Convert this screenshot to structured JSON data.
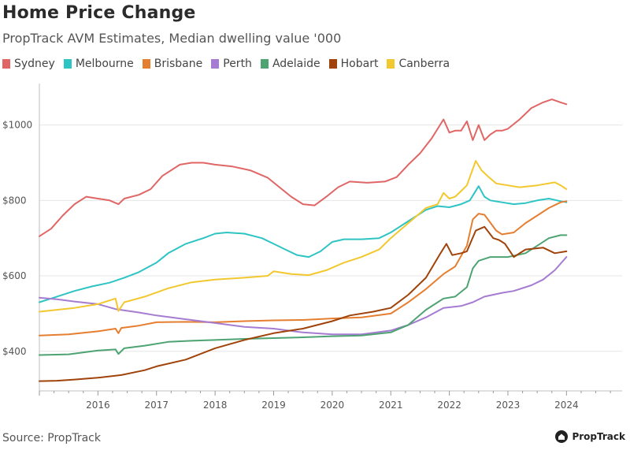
{
  "header": {
    "title": "Home Price Change",
    "subtitle": "PropTrack AVM Estimates, Median dwelling value '000"
  },
  "footer": {
    "source": "Source: PropTrack",
    "brand": "PropTrack"
  },
  "chart_data": {
    "type": "line",
    "title": "Home Price Change",
    "subtitle": "PropTrack AVM Estimates, Median dwelling value '000",
    "xlabel": "",
    "ylabel": "",
    "xlim": [
      2015.0,
      2024.95
    ],
    "ylim": [
      295,
      1110
    ],
    "x_ticks": [
      "2016",
      "2017",
      "2018",
      "2019",
      "2020",
      "2021",
      "2022",
      "2023",
      "2024"
    ],
    "y_ticks": [
      400,
      600,
      800,
      1000
    ],
    "y_tick_labels": [
      "$400",
      "$600",
      "$800",
      "$1000"
    ],
    "grid": "horizontal",
    "legend_position": "top-left",
    "series": [
      {
        "name": "Sydney",
        "color": "#e06666",
        "x": [
          2015.0,
          2015.2,
          2015.4,
          2015.6,
          2015.8,
          2016.0,
          2016.2,
          2016.35,
          2016.45,
          2016.7,
          2016.9,
          2017.1,
          2017.4,
          2017.6,
          2017.8,
          2018.0,
          2018.3,
          2018.6,
          2018.9,
          2019.1,
          2019.3,
          2019.5,
          2019.7,
          2019.9,
          2020.1,
          2020.3,
          2020.6,
          2020.9,
          2021.1,
          2021.3,
          2021.5,
          2021.7,
          2021.9,
          2022.0,
          2022.1,
          2022.2,
          2022.3,
          2022.4,
          2022.5,
          2022.6,
          2022.7,
          2022.8,
          2022.9,
          2023.0,
          2023.2,
          2023.4,
          2023.6,
          2023.75,
          2023.9,
          2024.0
        ],
        "y": [
          705,
          725,
          760,
          790,
          810,
          805,
          800,
          790,
          805,
          815,
          830,
          865,
          895,
          900,
          900,
          895,
          890,
          880,
          860,
          835,
          810,
          790,
          787,
          810,
          835,
          850,
          847,
          850,
          862,
          895,
          925,
          965,
          1015,
          980,
          985,
          985,
          1010,
          960,
          1000,
          960,
          975,
          985,
          985,
          990,
          1015,
          1045,
          1060,
          1068,
          1060,
          1055
        ]
      },
      {
        "name": "Melbourne",
        "color": "#2ec4c4",
        "x": [
          2015.0,
          2015.3,
          2015.6,
          2015.9,
          2016.2,
          2016.45,
          2016.7,
          2017.0,
          2017.2,
          2017.5,
          2017.8,
          2018.0,
          2018.2,
          2018.5,
          2018.8,
          2019.0,
          2019.2,
          2019.4,
          2019.6,
          2019.8,
          2020.0,
          2020.2,
          2020.5,
          2020.8,
          2021.0,
          2021.2,
          2021.4,
          2021.6,
          2021.8,
          2022.0,
          2022.2,
          2022.35,
          2022.5,
          2022.6,
          2022.7,
          2022.9,
          2023.1,
          2023.3,
          2023.5,
          2023.7,
          2023.9,
          2024.0
        ],
        "y": [
          530,
          545,
          560,
          572,
          582,
          595,
          610,
          635,
          660,
          685,
          700,
          712,
          715,
          712,
          700,
          685,
          670,
          655,
          650,
          665,
          690,
          697,
          697,
          700,
          715,
          735,
          755,
          775,
          785,
          782,
          790,
          800,
          838,
          810,
          800,
          795,
          790,
          793,
          800,
          805,
          798,
          795
        ]
      },
      {
        "name": "Brisbane",
        "color": "#e67e30",
        "x": [
          2015.0,
          2015.5,
          2016.0,
          2016.3,
          2016.35,
          2016.4,
          2016.7,
          2017.0,
          2017.5,
          2018.0,
          2018.5,
          2019.0,
          2019.5,
          2020.0,
          2020.5,
          2021.0,
          2021.3,
          2021.6,
          2021.9,
          2022.1,
          2022.3,
          2022.4,
          2022.5,
          2022.6,
          2022.8,
          2022.9,
          2023.1,
          2023.3,
          2023.5,
          2023.7,
          2023.9,
          2024.0
        ],
        "y": [
          442,
          445,
          453,
          460,
          448,
          462,
          468,
          477,
          478,
          477,
          480,
          482,
          483,
          487,
          490,
          500,
          530,
          565,
          605,
          625,
          680,
          750,
          765,
          762,
          720,
          710,
          715,
          740,
          760,
          780,
          795,
          798
        ]
      },
      {
        "name": "Perth",
        "color": "#a57cd1",
        "x": [
          2015.0,
          2015.3,
          2015.6,
          2016.0,
          2016.3,
          2016.7,
          2017.0,
          2017.5,
          2018.0,
          2018.5,
          2019.0,
          2019.5,
          2020.0,
          2020.5,
          2021.0,
          2021.3,
          2021.6,
          2021.9,
          2022.2,
          2022.4,
          2022.6,
          2022.9,
          2023.1,
          2023.4,
          2023.6,
          2023.8,
          2024.0
        ],
        "y": [
          542,
          538,
          532,
          525,
          512,
          503,
          495,
          485,
          475,
          465,
          460,
          450,
          445,
          445,
          455,
          470,
          490,
          515,
          520,
          530,
          545,
          555,
          560,
          575,
          590,
          615,
          650
        ]
      },
      {
        "name": "Adelaide",
        "color": "#4ea372",
        "x": [
          2015.0,
          2015.5,
          2016.0,
          2016.3,
          2016.35,
          2016.45,
          2016.8,
          2017.2,
          2017.6,
          2018.0,
          2018.5,
          2019.0,
          2019.5,
          2020.0,
          2020.5,
          2021.0,
          2021.3,
          2021.6,
          2021.9,
          2022.1,
          2022.3,
          2022.4,
          2022.5,
          2022.7,
          2023.0,
          2023.3,
          2023.5,
          2023.7,
          2023.9,
          2024.0
        ],
        "y": [
          390,
          392,
          402,
          405,
          393,
          408,
          415,
          425,
          428,
          430,
          433,
          435,
          437,
          440,
          442,
          450,
          470,
          510,
          540,
          545,
          570,
          620,
          640,
          650,
          650,
          660,
          680,
          700,
          708,
          708
        ]
      },
      {
        "name": "Hobart",
        "color": "#a0430a",
        "x": [
          2015.0,
          2015.3,
          2015.6,
          2016.0,
          2016.4,
          2016.8,
          2017.0,
          2017.5,
          2018.0,
          2018.5,
          2019.0,
          2019.5,
          2020.0,
          2020.3,
          2020.7,
          2021.0,
          2021.3,
          2021.6,
          2021.85,
          2021.95,
          2022.05,
          2022.2,
          2022.3,
          2022.45,
          2022.6,
          2022.75,
          2022.85,
          2022.95,
          2023.1,
          2023.3,
          2023.6,
          2023.8,
          2024.0
        ],
        "y": [
          321,
          322,
          325,
          330,
          337,
          350,
          360,
          378,
          408,
          430,
          448,
          460,
          480,
          495,
          505,
          515,
          550,
          595,
          660,
          685,
          655,
          660,
          665,
          720,
          730,
          700,
          695,
          685,
          650,
          670,
          675,
          660,
          665
        ]
      },
      {
        "name": "Canberra",
        "color": "#f2c82e",
        "x": [
          2015.0,
          2015.3,
          2015.6,
          2016.0,
          2016.3,
          2016.35,
          2016.45,
          2016.8,
          2017.2,
          2017.6,
          2018.0,
          2018.5,
          2018.9,
          2019.0,
          2019.3,
          2019.6,
          2019.9,
          2020.2,
          2020.5,
          2020.8,
          2021.0,
          2021.3,
          2021.6,
          2021.8,
          2021.9,
          2022.0,
          2022.1,
          2022.2,
          2022.3,
          2022.45,
          2022.55,
          2022.65,
          2022.8,
          2023.0,
          2023.2,
          2023.5,
          2023.8,
          2023.9,
          2024.0
        ],
        "y": [
          505,
          510,
          515,
          525,
          540,
          507,
          530,
          545,
          567,
          583,
          590,
          595,
          600,
          612,
          605,
          602,
          615,
          635,
          650,
          670,
          700,
          740,
          780,
          790,
          820,
          805,
          810,
          825,
          840,
          905,
          880,
          865,
          845,
          840,
          835,
          840,
          848,
          840,
          830
        ]
      }
    ]
  }
}
